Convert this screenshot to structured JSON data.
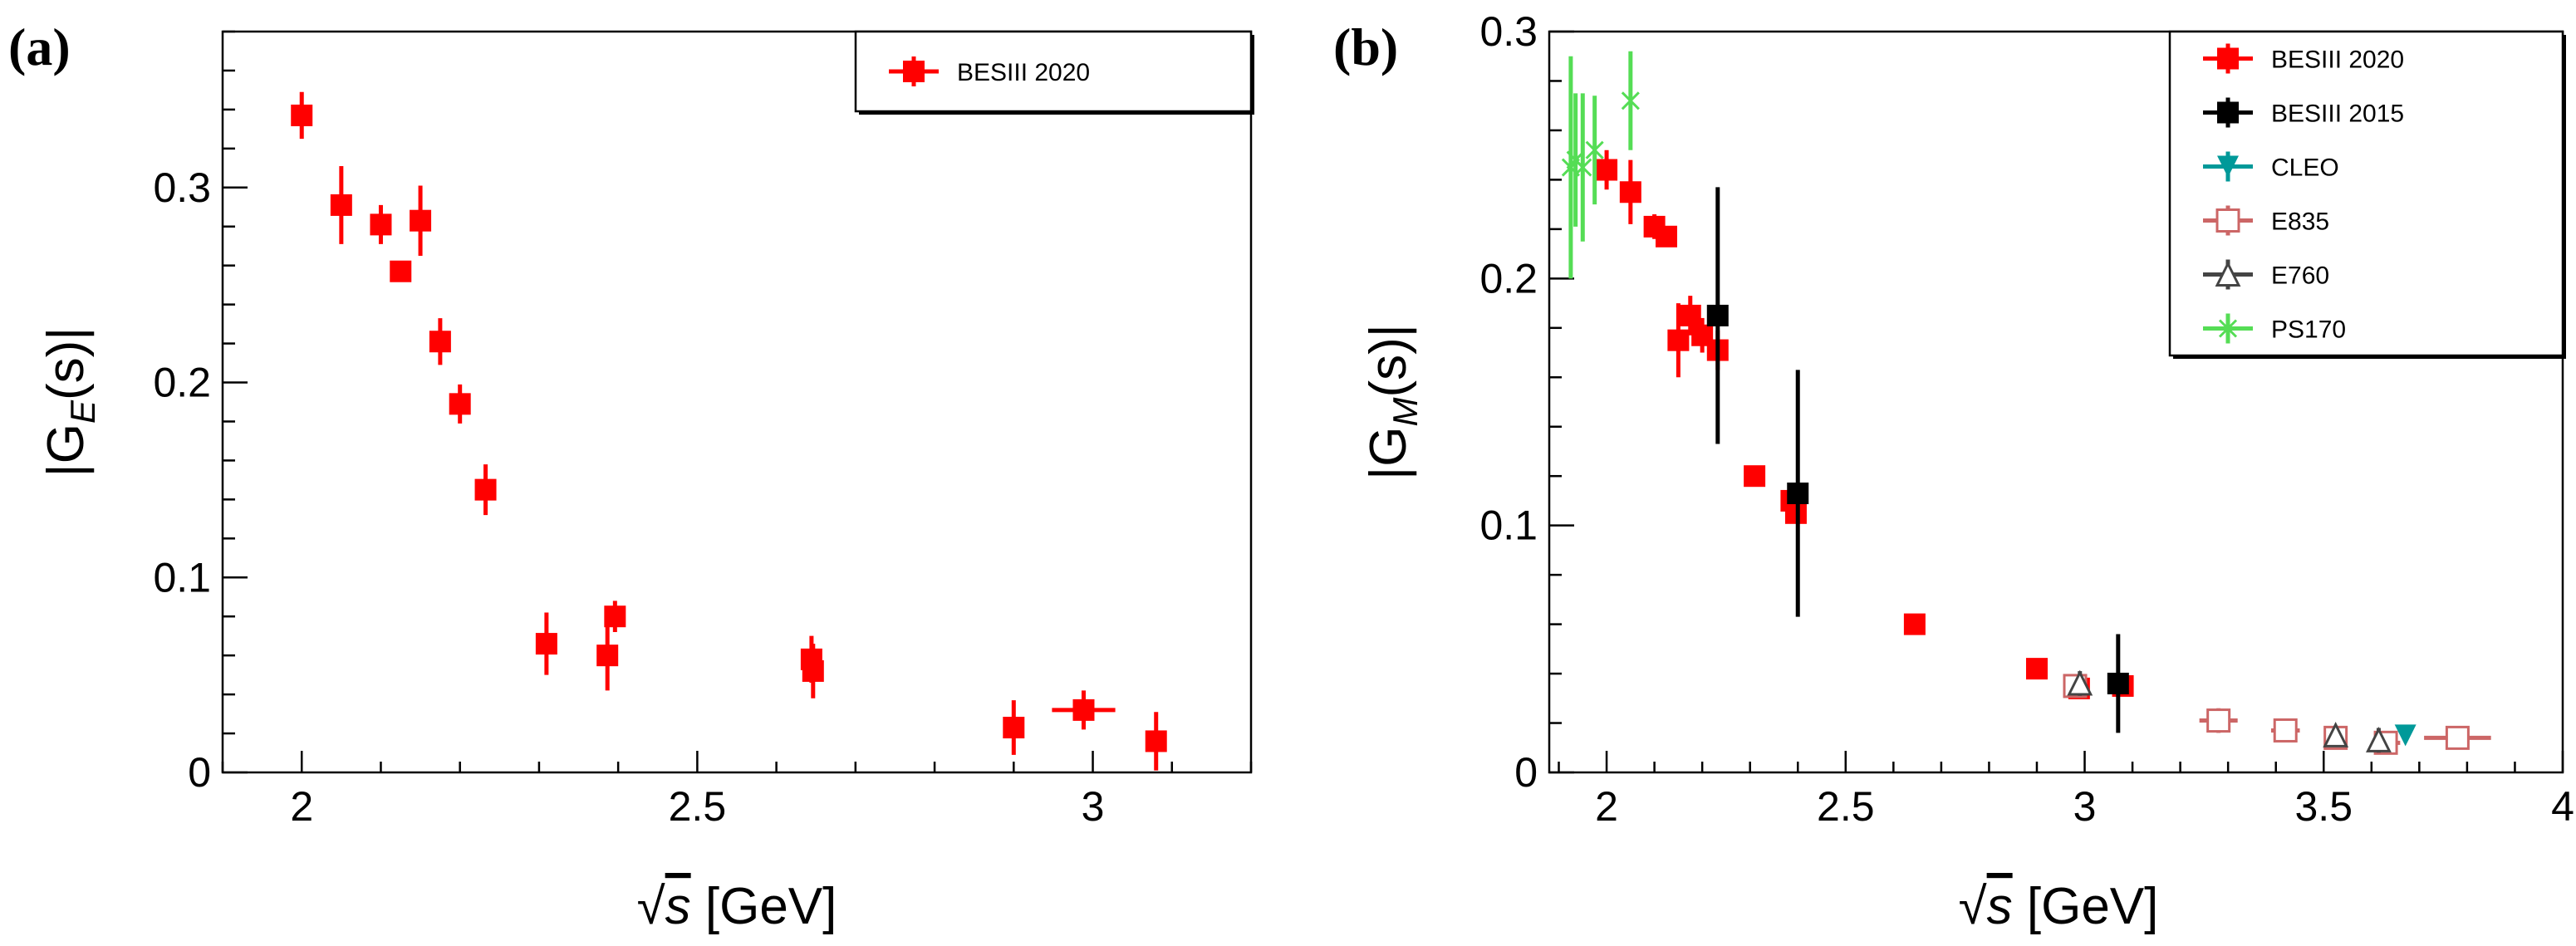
{
  "figure": {
    "panels": [
      "(a)",
      "(b)"
    ]
  },
  "chart_data": [
    {
      "type": "scatter",
      "panel_label": "(a)",
      "title": "",
      "xlabel_root": "√",
      "xlabel": "s",
      "xlabel_unit": " [GeV]",
      "ylabel_prefix": "|G",
      "ylabel_sub": "E",
      "ylabel_suffix": "(s)|",
      "xlim": [
        1.9,
        3.2
      ],
      "ylim": [
        0,
        0.38
      ],
      "xticks_major": [
        2,
        2.5,
        3
      ],
      "xtick_labels": [
        "2",
        "2.5",
        "3"
      ],
      "yticks_major": [
        0,
        0.1,
        0.2,
        0.3
      ],
      "ytick_labels": [
        "0",
        "0.1",
        "0.2",
        "0.3"
      ],
      "legend_position": "top-right",
      "series": [
        {
          "name": "BESIII 2020",
          "color": "#ff0000",
          "marker": "square-filled",
          "points": [
            {
              "x": 2.0,
              "y": 0.337,
              "yerr": 0.012,
              "xerr": 0.0
            },
            {
              "x": 2.05,
              "y": 0.291,
              "yerr": 0.02,
              "xerr": 0.0
            },
            {
              "x": 2.1,
              "y": 0.281,
              "yerr": 0.01,
              "xerr": 0.0
            },
            {
              "x": 2.125,
              "y": 0.257,
              "yerr": 0.005,
              "xerr": 0.0
            },
            {
              "x": 2.15,
              "y": 0.283,
              "yerr": 0.018,
              "xerr": 0.0
            },
            {
              "x": 2.175,
              "y": 0.221,
              "yerr": 0.012,
              "xerr": 0.0
            },
            {
              "x": 2.2,
              "y": 0.189,
              "yerr": 0.01,
              "xerr": 0.0
            },
            {
              "x": 2.2324,
              "y": 0.145,
              "yerr": 0.013,
              "xerr": 0.0
            },
            {
              "x": 2.3094,
              "y": 0.066,
              "yerr": 0.016,
              "xerr": 0.0
            },
            {
              "x": 2.3864,
              "y": 0.06,
              "yerr": 0.018,
              "xerr": 0.0
            },
            {
              "x": 2.396,
              "y": 0.08,
              "yerr": 0.008,
              "xerr": 0.0
            },
            {
              "x": 2.6444,
              "y": 0.058,
              "yerr": 0.012,
              "xerr": 0.0
            },
            {
              "x": 2.6464,
              "y": 0.052,
              "yerr": 0.014,
              "xerr": 0.0
            },
            {
              "x": 2.9,
              "y": 0.023,
              "yerr": 0.014,
              "xerr": 0.0
            },
            {
              "x": 2.9884,
              "y": 0.032,
              "yerr": 0.01,
              "xerr": 0.04
            },
            {
              "x": 3.08,
              "y": 0.016,
              "yerr": 0.015,
              "xerr": 0.0
            }
          ]
        }
      ]
    },
    {
      "type": "scatter",
      "panel_label": "(b)",
      "title": "",
      "xlabel_root": "√",
      "xlabel": "s",
      "xlabel_unit": " [GeV]",
      "ylabel_prefix": "|G",
      "ylabel_sub": "M",
      "ylabel_suffix": "(s)|",
      "xlim": [
        1.88,
        4.0
      ],
      "ylim": [
        0,
        0.3
      ],
      "xticks_major": [
        2,
        2.5,
        3,
        3.5,
        4
      ],
      "xtick_labels": [
        "2",
        "2.5",
        "3",
        "3.5",
        "4"
      ],
      "yticks_major": [
        0,
        0.1,
        0.2,
        0.3
      ],
      "ytick_labels": [
        "0",
        "0.1",
        "0.2",
        "0.3"
      ],
      "legend_position": "top-right",
      "series": [
        {
          "name": "BESIII 2020",
          "color": "#ff0000",
          "marker": "square-filled",
          "points": [
            {
              "x": 2.0,
              "y": 0.244,
              "yerr": 0.008,
              "xerr": 0.0
            },
            {
              "x": 2.05,
              "y": 0.235,
              "yerr": 0.013,
              "xerr": 0.0
            },
            {
              "x": 2.1,
              "y": 0.221,
              "yerr": 0.005,
              "xerr": 0.0
            },
            {
              "x": 2.125,
              "y": 0.217,
              "yerr": 0.004,
              "xerr": 0.0
            },
            {
              "x": 2.15,
              "y": 0.175,
              "yerr": 0.015,
              "xerr": 0.0
            },
            {
              "x": 2.175,
              "y": 0.185,
              "yerr": 0.008,
              "xerr": 0.0
            },
            {
              "x": 2.2,
              "y": 0.177,
              "yerr": 0.007,
              "xerr": 0.0
            },
            {
              "x": 2.2324,
              "y": 0.171,
              "yerr": 0.008,
              "xerr": 0.0
            },
            {
              "x": 2.3094,
              "y": 0.12,
              "yerr": 0.004,
              "xerr": 0.0
            },
            {
              "x": 2.3864,
              "y": 0.11,
              "yerr": 0.006,
              "xerr": 0.0
            },
            {
              "x": 2.396,
              "y": 0.105,
              "yerr": 0.004,
              "xerr": 0.0
            },
            {
              "x": 2.6444,
              "y": 0.06,
              "yerr": 0.002,
              "xerr": 0.0
            },
            {
              "x": 2.9,
              "y": 0.042,
              "yerr": 0.002,
              "xerr": 0.0
            },
            {
              "x": 2.9884,
              "y": 0.034,
              "yerr": 0.004,
              "xerr": 0.0
            },
            {
              "x": 3.08,
              "y": 0.035,
              "yerr": 0.003,
              "xerr": 0.0
            }
          ]
        },
        {
          "name": "BESIII 2015",
          "color": "#000000",
          "marker": "square-filled",
          "points": [
            {
              "x": 2.2324,
              "y": 0.185,
              "yerr": 0.052,
              "xerr": 0.0
            },
            {
              "x": 2.4,
              "y": 0.113,
              "yerr": 0.05,
              "xerr": 0.0
            },
            {
              "x": 3.07,
              "y": 0.036,
              "yerr": 0.02,
              "xerr": 0.0
            }
          ]
        },
        {
          "name": "CLEO",
          "color": "#009999",
          "marker": "triangle-down-filled",
          "points": [
            {
              "x": 3.671,
              "y": 0.015,
              "yerr": 0.001,
              "xerr": 0.0
            }
          ]
        },
        {
          "name": "E835",
          "color": "#cc6666",
          "marker": "square-open",
          "points": [
            {
              "x": 2.98,
              "y": 0.035,
              "yerr": 0.004,
              "xerr": 0.0
            },
            {
              "x": 3.28,
              "y": 0.021,
              "yerr": 0.005,
              "xerr": 0.04
            },
            {
              "x": 3.42,
              "y": 0.017,
              "yerr": 0.003,
              "xerr": 0.03
            },
            {
              "x": 3.525,
              "y": 0.014,
              "yerr": 0.002,
              "xerr": 0.02
            },
            {
              "x": 3.63,
              "y": 0.012,
              "yerr": 0.002,
              "xerr": 0.03
            },
            {
              "x": 3.78,
              "y": 0.014,
              "yerr": 0.004,
              "xerr": 0.07
            }
          ]
        },
        {
          "name": "E760",
          "color": "#444444",
          "marker": "triangle-up-open",
          "points": [
            {
              "x": 2.99,
              "y": 0.036,
              "yerr": 0.005,
              "xerr": 0.0
            },
            {
              "x": 3.525,
              "y": 0.015,
              "yerr": 0.003,
              "xerr": 0.0
            },
            {
              "x": 3.615,
              "y": 0.013,
              "yerr": 0.005,
              "xerr": 0.0
            }
          ]
        },
        {
          "name": "PS170",
          "color": "#55dd55",
          "marker": "cross",
          "points": [
            {
              "x": 1.925,
              "y": 0.245,
              "yerr": 0.045,
              "xerr": 0.004
            },
            {
              "x": 1.935,
              "y": 0.248,
              "yerr": 0.027,
              "xerr": 0.004
            },
            {
              "x": 1.95,
              "y": 0.245,
              "yerr": 0.03,
              "xerr": 0.004
            },
            {
              "x": 1.975,
              "y": 0.252,
              "yerr": 0.022,
              "xerr": 0.004
            },
            {
              "x": 2.05,
              "y": 0.272,
              "yerr": 0.02,
              "xerr": 0.004
            }
          ]
        }
      ]
    }
  ]
}
